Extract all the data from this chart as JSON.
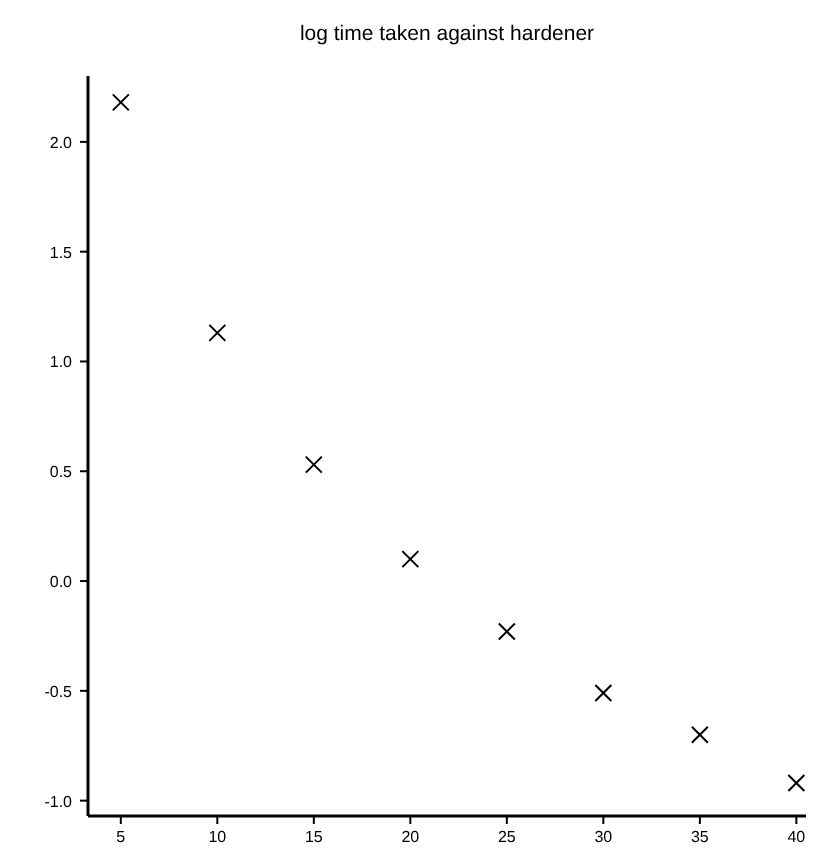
{
  "chart_data": {
    "type": "scatter",
    "title": "log time taken against hardener",
    "x": [
      5,
      10,
      15,
      20,
      25,
      30,
      35,
      40
    ],
    "values": [
      2.18,
      1.13,
      0.53,
      0.1,
      -0.23,
      -0.51,
      -0.7,
      -0.92
    ],
    "color": "#000000",
    "marker": "cross",
    "xlim": [
      3.3,
      40.5
    ],
    "xticks": [
      5,
      10,
      15,
      20,
      25,
      30,
      35,
      40
    ],
    "ylim": [
      -1.07,
      2.3
    ],
    "yticks": [
      {
        "value": -1,
        "label": "-1.0"
      },
      {
        "value": -0.5,
        "label": "-0.5"
      },
      {
        "value": 0,
        "label": "0.0"
      },
      {
        "value": 0.5,
        "label": "0.5"
      },
      {
        "value": 1,
        "label": "1.0"
      },
      {
        "value": 1.5,
        "label": "1.5"
      },
      {
        "value": 2,
        "label": "2.0"
      }
    ],
    "grid": false
  }
}
